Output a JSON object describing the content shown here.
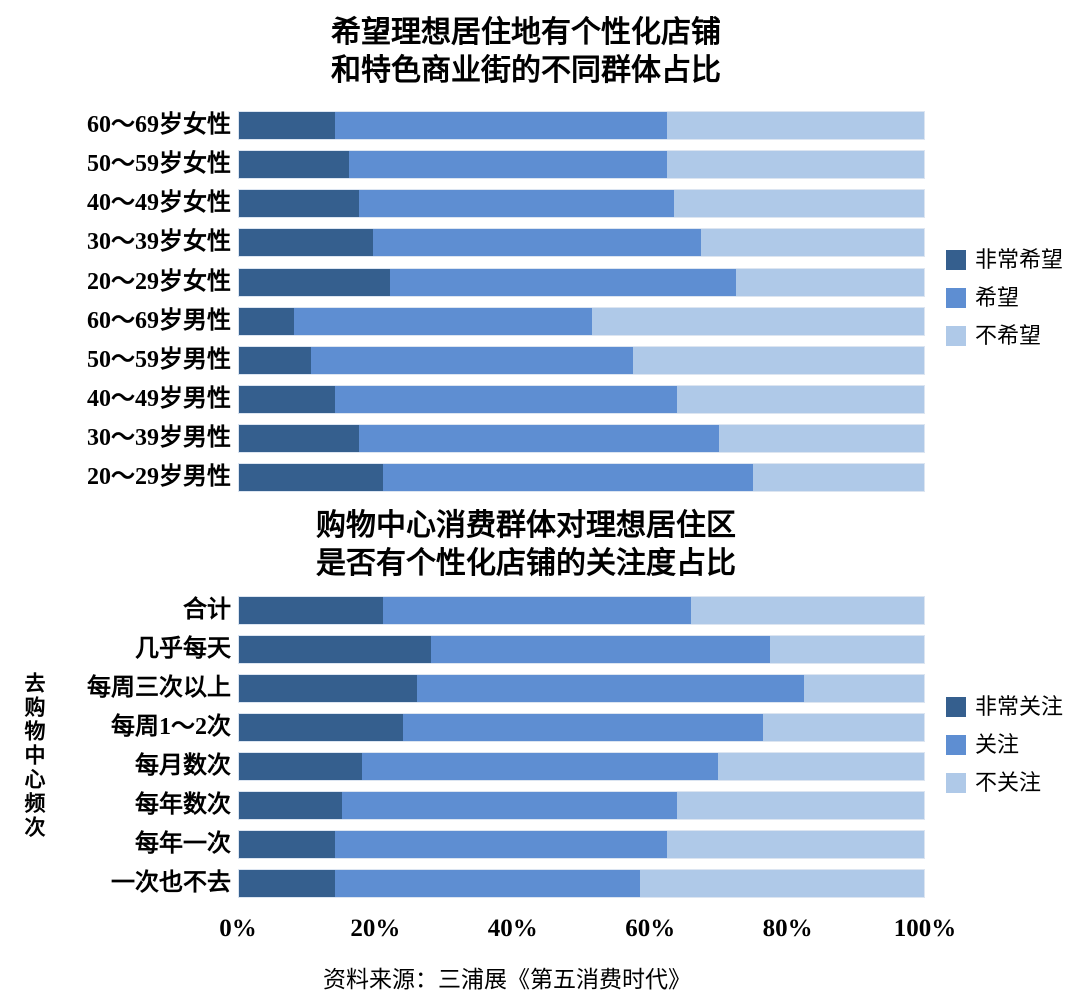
{
  "page": {
    "background": "#ffffff"
  },
  "colors": {
    "series_dark": "#355F8E",
    "series_medium": "#5E8ED2",
    "series_light": "#AFC9E8",
    "bar_outline": "#DCE5F1"
  },
  "chart_data": [
    {
      "type": "bar",
      "stacked": true,
      "orientation": "horizontal",
      "title_lines": [
        "希望理想居住地有个性化店铺",
        "和特色商业街的不同群体占比"
      ],
      "categories": [
        "60～69岁女性",
        "50～59岁女性",
        "40～49岁女性",
        "30～39岁女性",
        "20～29岁女性",
        "60～69岁男性",
        "50～59岁男性",
        "40～49岁男性",
        "30～39岁男性",
        "20～29岁男性"
      ],
      "series": [
        {
          "name": "非常希望",
          "color": "#355F8E",
          "values": [
            14,
            16,
            17.5,
            19.5,
            22,
            8,
            10.5,
            14,
            17.5,
            21
          ]
        },
        {
          "name": "希望",
          "color": "#5E8ED2",
          "values": [
            48.5,
            46.5,
            46,
            48,
            50.5,
            43.5,
            47,
            50,
            52.5,
            54
          ]
        },
        {
          "name": "不希望",
          "color": "#AFC9E8",
          "values": [
            37.5,
            37.5,
            36.5,
            32.5,
            27.5,
            48.5,
            42.5,
            36,
            30,
            25
          ]
        }
      ],
      "xlim": [
        0,
        100
      ],
      "unit": "%",
      "grid": false,
      "legend_position": "right"
    },
    {
      "type": "bar",
      "stacked": true,
      "orientation": "horizontal",
      "title_lines": [
        "购物中心消费群体对理想居住区",
        "是否有个性化店铺的关注度占比"
      ],
      "ylabel": "去购物中心频次",
      "categories": [
        "合计",
        "几乎每天",
        "每周三次以上",
        "每周1～2次",
        "每月数次",
        "每年数次",
        "每年一次",
        "一次也不去"
      ],
      "series": [
        {
          "name": "非常关注",
          "color": "#355F8E",
          "values": [
            21,
            28,
            26,
            24,
            18,
            15,
            14,
            14
          ]
        },
        {
          "name": "关注",
          "color": "#5E8ED2",
          "values": [
            45,
            49.5,
            56.5,
            52.5,
            52,
            49,
            48.5,
            44.5
          ]
        },
        {
          "name": "不关注",
          "color": "#AFC9E8",
          "values": [
            34,
            22.5,
            17.5,
            23.5,
            30,
            36,
            37.5,
            41.5
          ]
        }
      ],
      "x_ticks": [
        "0%",
        "20%",
        "40%",
        "60%",
        "80%",
        "100%"
      ],
      "xlim": [
        0,
        100
      ],
      "unit": "%",
      "grid": false,
      "legend_position": "right"
    }
  ],
  "source_note": "资料来源：三浦展《第五消费时代》"
}
